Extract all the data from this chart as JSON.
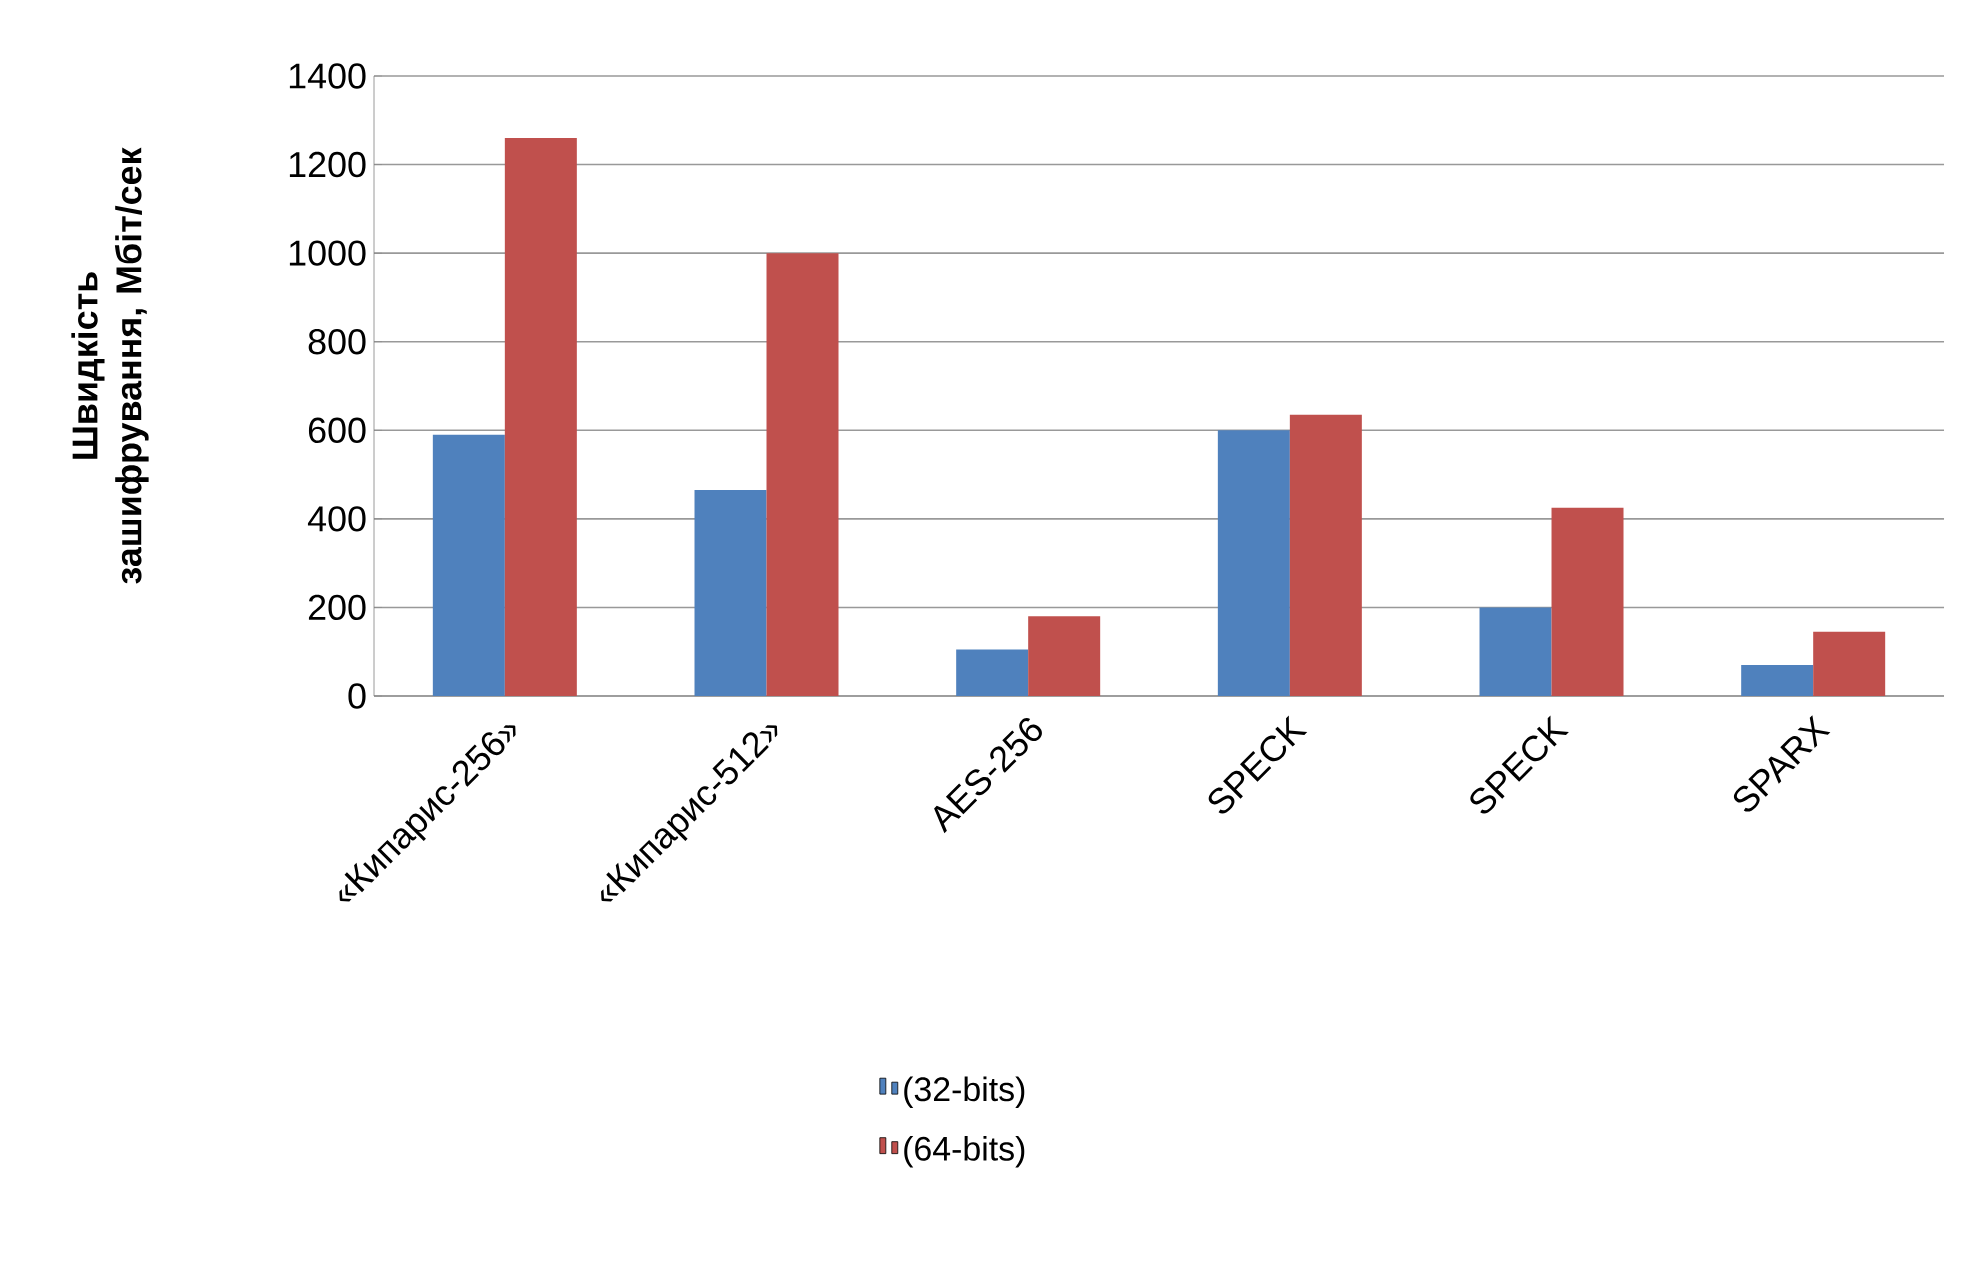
{
  "chart_data": {
    "type": "bar",
    "ylabel": "Швидкість зашифрування, Мбіт/сек",
    "categories": [
      "«Кипарис-256»",
      "«Кипарис-512»",
      "AES-256",
      "SPECK",
      "SPECK",
      "SPARX"
    ],
    "series": [
      {
        "name": "(32-bits)",
        "color": "#4f81bd",
        "values": [
          590,
          465,
          105,
          600,
          200,
          70
        ]
      },
      {
        "name": "(64-bits)",
        "color": "#c0504d",
        "values": [
          1260,
          1000,
          180,
          635,
          425,
          145
        ]
      }
    ],
    "ylim": [
      0,
      1400
    ],
    "yticks": [
      0,
      200,
      400,
      600,
      800,
      1000,
      1200,
      1400
    ],
    "grid": "y",
    "legend": "bottom"
  }
}
